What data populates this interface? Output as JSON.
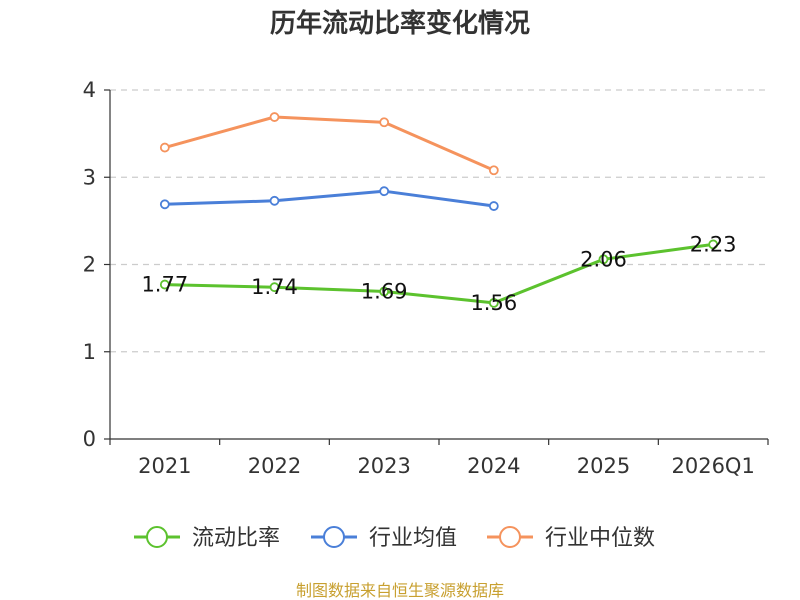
{
  "chart_data": {
    "type": "line",
    "title": "历年流动比率变化情况",
    "categories": [
      "2021",
      "2022",
      "2023",
      "2024",
      "2025",
      "2026Q1"
    ],
    "ylim": [
      0,
      4
    ],
    "yticks": [
      0,
      1,
      2,
      3,
      4
    ],
    "grid": true,
    "legend_position": "bottom",
    "series": [
      {
        "name": "流动比率",
        "color": "#5cc22e",
        "values": [
          1.77,
          1.74,
          1.69,
          1.56,
          2.06,
          2.23
        ],
        "labels": [
          "1.77",
          "1.74",
          "1.69",
          "1.56",
          "2.06",
          "2.23"
        ],
        "show_labels": true
      },
      {
        "name": "行业均值",
        "color": "#4a7fd8",
        "values": [
          2.69,
          2.73,
          2.84,
          2.67,
          null,
          null
        ],
        "show_labels": false
      },
      {
        "name": "行业中位数",
        "color": "#f5935d",
        "values": [
          3.34,
          3.69,
          3.63,
          3.08,
          null,
          null
        ],
        "show_labels": false
      }
    ],
    "source": "制图数据来自恒生聚源数据库"
  }
}
